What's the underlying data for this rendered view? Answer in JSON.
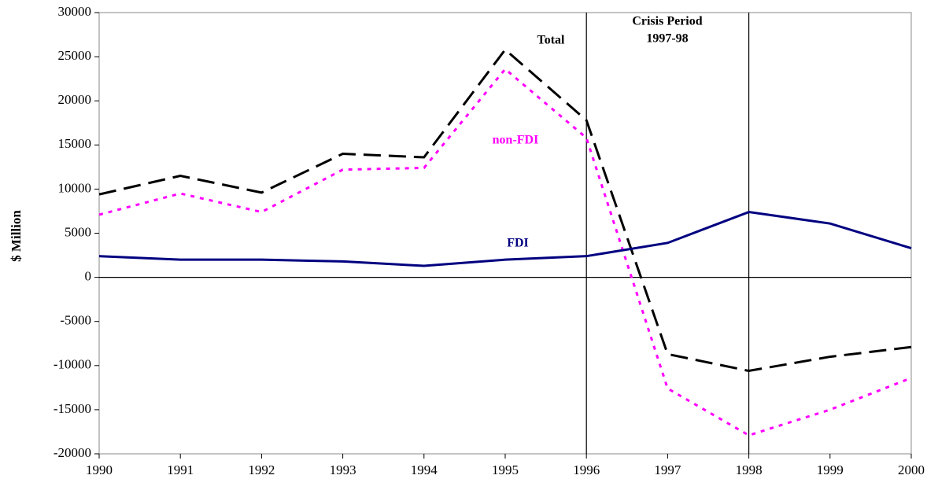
{
  "chart_data": {
    "type": "line",
    "y_label": "$ Million",
    "x": [
      1990,
      1991,
      1992,
      1993,
      1994,
      1995,
      1996,
      1997,
      1998,
      1999,
      2000
    ],
    "xlim": [
      1990,
      2000
    ],
    "xticks": [
      1990,
      1991,
      1992,
      1993,
      1994,
      1995,
      1996,
      1997,
      1998,
      1999,
      2000
    ],
    "ylim": [
      -20000,
      30000
    ],
    "yticks": [
      -20000,
      -15000,
      -10000,
      -5000,
      0,
      5000,
      10000,
      15000,
      20000,
      25000,
      30000
    ],
    "vlines": [
      1996,
      1998
    ],
    "annotations": [
      "Crisis Period",
      "1997-98"
    ],
    "series": [
      {
        "name": "Total",
        "color": "#000000",
        "style": "dashed",
        "values": [
          9400,
          11500,
          9600,
          14000,
          13600,
          25800,
          17800,
          -8700,
          -10600,
          -9000,
          -7900
        ]
      },
      {
        "name": "non-FDI",
        "color": "#ff00ff",
        "style": "dotted",
        "values": [
          7100,
          9500,
          7400,
          12200,
          12400,
          23600,
          15800,
          -12600,
          -17900,
          -15000,
          -11400
        ]
      },
      {
        "name": "FDI",
        "color": "#000080",
        "style": "solid",
        "values": [
          2400,
          2000,
          2000,
          1800,
          1300,
          2000,
          2400,
          3900,
          7400,
          6100,
          3300
        ]
      }
    ]
  }
}
